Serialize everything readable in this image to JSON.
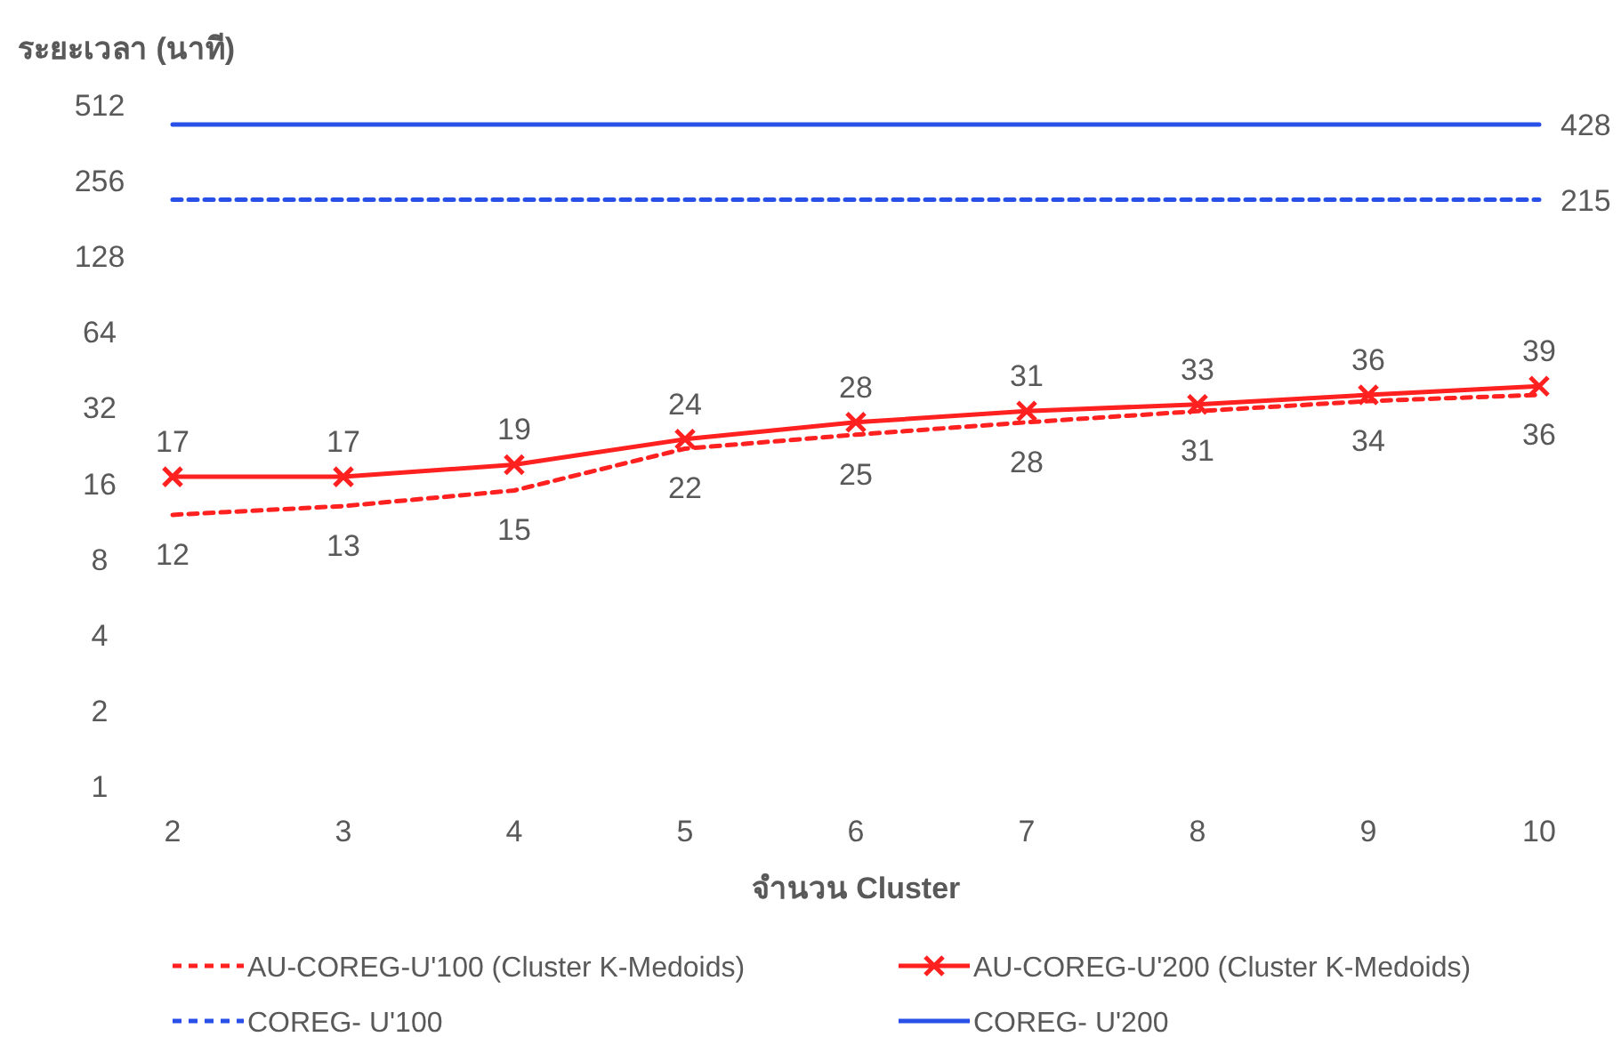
{
  "chart_data": {
    "type": "line",
    "xlabel": "จำนวน Cluster",
    "ylabel": "ระยะเวลา (นาที)",
    "categories": [
      "2",
      "3",
      "4",
      "5",
      "6",
      "7",
      "8",
      "9",
      "10"
    ],
    "log": "y",
    "ylim": [
      1,
      512
    ],
    "yticks": [
      1,
      2,
      4,
      8,
      16,
      32,
      64,
      128,
      256,
      512
    ],
    "grid": false,
    "legend": "bottom",
    "series": [
      {
        "name": "AU-COREG-U'100 (Cluster K-Medoids)",
        "color": "#ff2020",
        "line_style": "dashed",
        "marker": "none",
        "values": [
          12,
          13,
          15,
          22,
          25,
          28,
          31,
          34,
          36
        ],
        "value_labels": [
          "12",
          "13",
          "15",
          "22",
          "25",
          "28",
          "31",
          "34",
          "36"
        ]
      },
      {
        "name": "AU-COREG-U'200 (Cluster K-Medoids)",
        "color": "#ff2020",
        "line_style": "solid",
        "marker": "cross",
        "values": [
          17,
          17,
          19,
          24,
          28,
          31,
          33,
          36,
          39
        ],
        "value_labels": [
          "17",
          "17",
          "19",
          "24",
          "28",
          "31",
          "33",
          "36",
          "39"
        ]
      },
      {
        "name": "COREG- U'100",
        "color": "#2850e8",
        "line_style": "dashed",
        "marker": "none",
        "values": [
          215,
          215,
          215,
          215,
          215,
          215,
          215,
          215,
          215
        ],
        "value_labels": [
          null,
          null,
          null,
          null,
          null,
          null,
          null,
          null,
          "215"
        ]
      },
      {
        "name": "COREG- U'200",
        "color": "#2850e8",
        "line_style": "solid",
        "marker": "none",
        "values": [
          428,
          428,
          428,
          428,
          428,
          428,
          428,
          428,
          428
        ],
        "value_labels": [
          null,
          null,
          null,
          null,
          null,
          null,
          null,
          null,
          "428"
        ]
      }
    ]
  }
}
